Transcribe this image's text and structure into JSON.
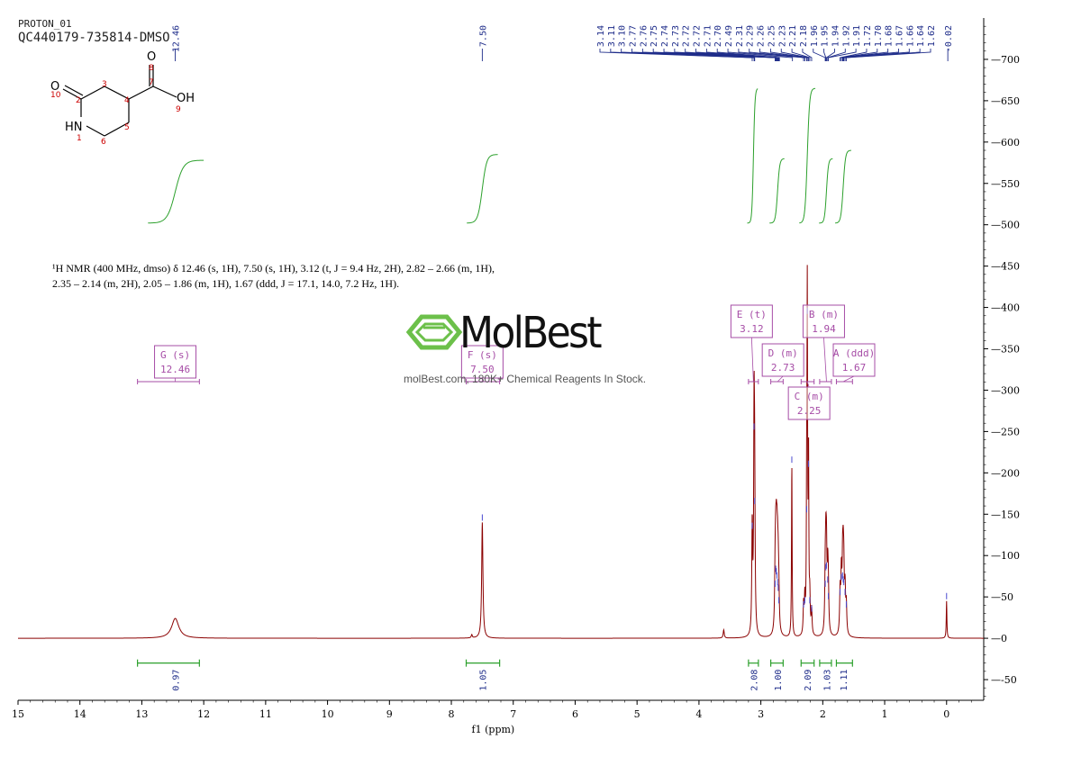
{
  "header": {
    "experiment": "PROTON_01",
    "sample": "QC440179-735814-DMSO"
  },
  "summary": {
    "line1": "¹H NMR (400 MHz, dmso) δ 12.46 (s, 1H), 7.50 (s, 1H), 3.12 (t, J = 9.4 Hz, 2H), 2.82 – 2.66 (m, 1H),",
    "line2": "2.35 – 2.14 (m, 2H), 2.05 – 1.86 (m, 1H), 1.67 (ddd, J = 17.1, 14.0, 7.2 Hz, 1H)."
  },
  "watermark": {
    "brand": "MolBest",
    "tagline": "molBest.com, 180K+ Chemical Reagents In Stock."
  },
  "molecule": {
    "atoms": [
      "O",
      "O",
      "OH",
      "HN"
    ],
    "numbers": [
      "1",
      "2",
      "3",
      "4",
      "5",
      "6",
      "7",
      "8",
      "9",
      "10"
    ],
    "colors": {
      "bond": "#000000",
      "number": "#cc0000"
    }
  },
  "chart_data": {
    "type": "line",
    "xlabel": "f1 (ppm)",
    "ylabel": "",
    "xlim": [
      15.0,
      -0.6
    ],
    "ylim": [
      -75,
      750
    ],
    "x_reversed": true,
    "x_ticks": [
      15,
      14,
      13,
      12,
      11,
      10,
      9,
      8,
      7,
      6,
      5,
      4,
      3,
      2,
      1,
      0
    ],
    "y_ticks": [
      -50,
      0,
      50,
      100,
      150,
      200,
      250,
      300,
      350,
      400,
      450,
      500,
      550,
      600,
      650,
      700
    ],
    "grid": false,
    "colors": {
      "spectrum": "#8b0000",
      "integral": "#2ca02c",
      "peak_label": "#1f2d8a",
      "multiplet": "#a64ca6"
    },
    "peaks": [
      {
        "ppm": 12.46,
        "height": 24,
        "width": 0.07
      },
      {
        "ppm": 7.5,
        "height": 140,
        "width": 0.012
      },
      {
        "ppm": 7.67,
        "height": 4,
        "width": 0.01
      },
      {
        "ppm": 3.6,
        "height": 10,
        "width": 0.01
      },
      {
        "ppm": 3.14,
        "height": 130,
        "width": 0.008
      },
      {
        "ppm": 3.11,
        "height": 250,
        "width": 0.008
      },
      {
        "ppm": 3.1,
        "height": 160,
        "width": 0.008
      },
      {
        "ppm": 2.77,
        "height": 60,
        "width": 0.009
      },
      {
        "ppm": 2.76,
        "height": 78,
        "width": 0.009
      },
      {
        "ppm": 2.75,
        "height": 75,
        "width": 0.009
      },
      {
        "ppm": 2.74,
        "height": 70,
        "width": 0.009
      },
      {
        "ppm": 2.73,
        "height": 62,
        "width": 0.009
      },
      {
        "ppm": 2.72,
        "height": 55,
        "width": 0.009
      },
      {
        "ppm": 2.71,
        "height": 40,
        "width": 0.009
      },
      {
        "ppm": 2.5,
        "height": 210,
        "width": 0.006
      },
      {
        "ppm": 2.31,
        "height": 35,
        "width": 0.008
      },
      {
        "ppm": 2.29,
        "height": 40,
        "width": 0.008
      },
      {
        "ppm": 2.26,
        "height": 150,
        "width": 0.006
      },
      {
        "ppm": 2.25,
        "height": 390,
        "width": 0.006
      },
      {
        "ppm": 2.23,
        "height": 205,
        "width": 0.006
      },
      {
        "ppm": 2.21,
        "height": 40,
        "width": 0.008
      },
      {
        "ppm": 2.18,
        "height": 30,
        "width": 0.008
      },
      {
        "ppm": 1.96,
        "height": 60,
        "width": 0.009
      },
      {
        "ppm": 1.95,
        "height": 80,
        "width": 0.009
      },
      {
        "ppm": 1.94,
        "height": 82,
        "width": 0.009
      },
      {
        "ppm": 1.92,
        "height": 65,
        "width": 0.009
      },
      {
        "ppm": 1.91,
        "height": 45,
        "width": 0.009
      },
      {
        "ppm": 1.72,
        "height": 50,
        "width": 0.009
      },
      {
        "ppm": 1.7,
        "height": 68,
        "width": 0.009
      },
      {
        "ppm": 1.68,
        "height": 70,
        "width": 0.009
      },
      {
        "ppm": 1.67,
        "height": 65,
        "width": 0.009
      },
      {
        "ppm": 1.66,
        "height": 62,
        "width": 0.009
      },
      {
        "ppm": 1.64,
        "height": 50,
        "width": 0.009
      },
      {
        "ppm": 1.62,
        "height": 35,
        "width": 0.009
      },
      {
        "ppm": 0.0,
        "height": 45,
        "width": 0.006
      }
    ],
    "peak_labels": [
      "12.46",
      "7.50",
      "3.14",
      "3.11",
      "3.10",
      "2.77",
      "2.76",
      "2.75",
      "2.74",
      "2.73",
      "2.72",
      "2.72",
      "2.71",
      "2.70",
      "2.49",
      "2.31",
      "2.29",
      "2.26",
      "2.25",
      "2.23",
      "2.21",
      "2.18",
      "1.96",
      "1.95",
      "1.94",
      "1.92",
      "1.91",
      "1.72",
      "1.70",
      "1.68",
      "1.67",
      "1.66",
      "1.64",
      "1.62",
      "-0.02"
    ],
    "peak_label_ppm": [
      12.46,
      7.5,
      3.14,
      3.11,
      3.1,
      2.77,
      2.76,
      2.75,
      2.74,
      2.73,
      2.72,
      2.72,
      2.71,
      2.7,
      2.49,
      2.31,
      2.29,
      2.26,
      2.25,
      2.23,
      2.21,
      2.18,
      1.96,
      1.95,
      1.94,
      1.92,
      1.91,
      1.72,
      1.7,
      1.68,
      1.67,
      1.66,
      1.64,
      1.62,
      -0.02
    ],
    "multiplets": [
      {
        "letter": "G",
        "kind": "s",
        "shift": "12.46",
        "from": 13.07,
        "to": 12.07,
        "integral": "0.97",
        "ppm": 12.46
      },
      {
        "letter": "F",
        "kind": "s",
        "shift": "7.50",
        "from": 7.76,
        "to": 7.22,
        "integral": "1.05",
        "ppm": 7.5
      },
      {
        "letter": "E",
        "kind": "t",
        "shift": "3.12",
        "from": 3.2,
        "to": 3.04,
        "integral": "2.08",
        "ppm": 3.12
      },
      {
        "letter": "D",
        "kind": "m",
        "shift": "2.73",
        "from": 2.84,
        "to": 2.64,
        "integral": "1.00",
        "ppm": 2.73
      },
      {
        "letter": "C",
        "kind": "m",
        "shift": "2.25",
        "from": 2.35,
        "to": 2.14,
        "integral": "2.09",
        "ppm": 2.25
      },
      {
        "letter": "B",
        "kind": "m",
        "shift": "1.94",
        "from": 2.05,
        "to": 1.86,
        "integral": "1.03",
        "ppm": 1.94
      },
      {
        "letter": "A",
        "kind": "ddd",
        "shift": "1.67",
        "from": 1.78,
        "to": 1.52,
        "integral": "1.11",
        "ppm": 1.67
      }
    ]
  }
}
